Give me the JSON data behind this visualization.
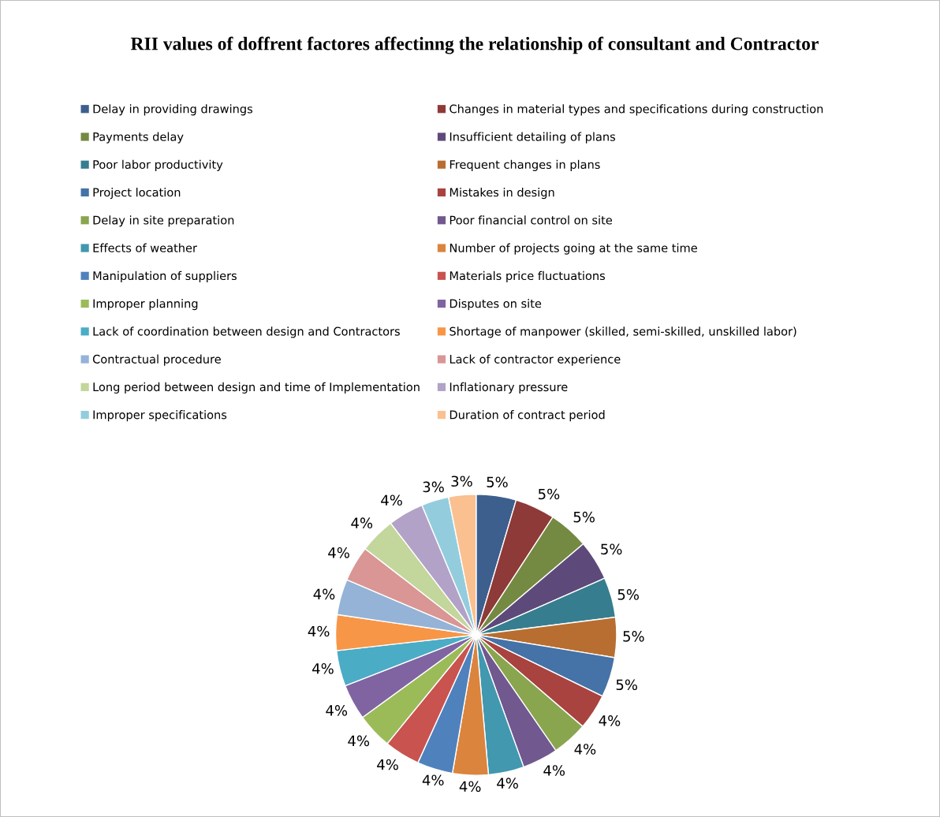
{
  "chart_data": {
    "type": "pie",
    "title": "RII values of doffrent factores affectinng the relationship of consultant and Contractor",
    "categories": [
      "Delay in providing drawings",
      "Changes in material types and specifications during construction",
      "Payments delay",
      "Insufficient detailing of plans",
      "Poor labor productivity",
      "Frequent changes in plans",
      "Project location",
      "Mistakes in design",
      "Delay in site preparation",
      "Poor financial control on site",
      "Effects of weather",
      "Number of projects going at the same time",
      "Manipulation of suppliers",
      "Materials price fluctuations",
      "Improper planning",
      "Disputes on site",
      "Lack of coordination between design and Contractors",
      "Shortage of manpower (skilled, semi-skilled, unskilled labor)",
      "Contractual procedure",
      "Lack of contractor experience",
      "Long period between design and time of Implementation",
      "Inflationary pressure",
      "Improper specifications",
      "Duration of contract period"
    ],
    "values": [
      4.6,
      4.6,
      4.6,
      4.6,
      4.6,
      4.6,
      4.6,
      4.1,
      4.1,
      4.1,
      4.1,
      4.1,
      4.1,
      4.1,
      4.1,
      4.1,
      4.1,
      4.1,
      4.1,
      4.1,
      4.1,
      4.1,
      3.15,
      3.15
    ],
    "value_labels": [
      "5%",
      "5%",
      "5%",
      "5%",
      "5%",
      "5%",
      "5%",
      "4%",
      "4%",
      "4%",
      "4%",
      "4%",
      "4%",
      "4%",
      "4%",
      "4%",
      "4%",
      "4%",
      "4%",
      "4%",
      "4%",
      "4%",
      "3%",
      "3%"
    ],
    "colors": [
      "#3c5f8e",
      "#8e3a38",
      "#748a42",
      "#5e4a7a",
      "#367e8f",
      "#b86e30",
      "#4572a7",
      "#a8433f",
      "#89a54e",
      "#71588f",
      "#4198af",
      "#db843d",
      "#4f81bd",
      "#c9534f",
      "#9bbb59",
      "#8064a2",
      "#4bacc6",
      "#f79646",
      "#95b3d7",
      "#d99694",
      "#c3d69b",
      "#b2a2c7",
      "#93cddd",
      "#fac090"
    ],
    "legend": "top"
  }
}
